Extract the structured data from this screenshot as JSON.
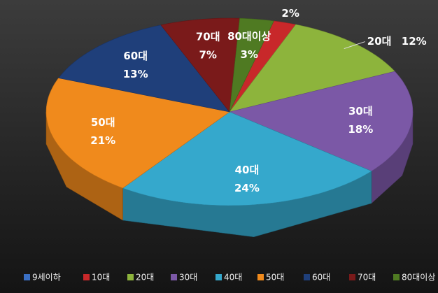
{
  "chart_data": {
    "type": "pie3d",
    "categories": [
      "9세이하",
      "10대",
      "20대",
      "30대",
      "40대",
      "50대",
      "60대",
      "70대",
      "80대이상"
    ],
    "values": [
      null,
      2,
      12,
      18,
      24,
      21,
      13,
      7,
      3
    ],
    "value_labels": [
      null,
      "2%",
      "12%",
      "18%",
      "24%",
      "21%",
      "13%",
      "7%",
      "3%"
    ],
    "colors": [
      "#3a6fc4",
      "#c8282a",
      "#8db43c",
      "#7b58a6",
      "#35a8cc",
      "#f08a1c",
      "#1f3f7a",
      "#7a1a1a",
      "#4f7a22"
    ],
    "legend": "bottom"
  }
}
